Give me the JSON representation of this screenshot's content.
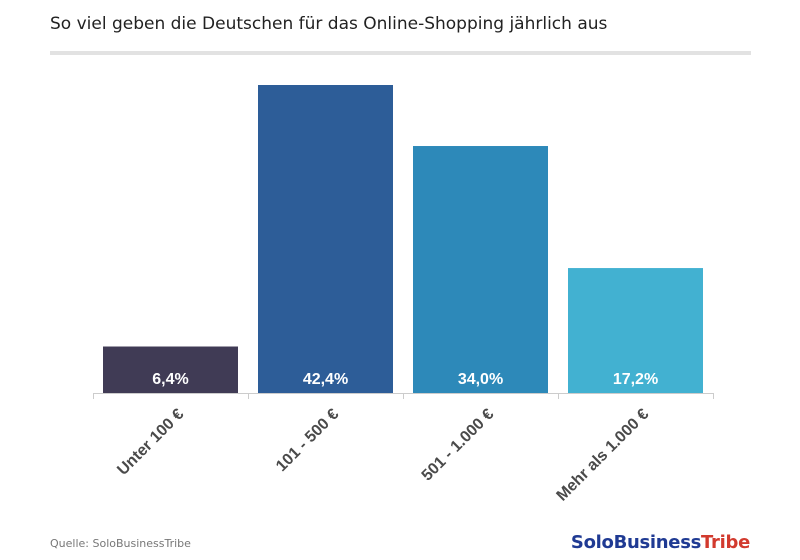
{
  "header": {
    "title": "So viel geben die Deutschen für das Online-Shopping jährlich aus"
  },
  "chart_data": {
    "type": "bar",
    "title": "So viel geben die Deutschen für das Online-Shopping jährlich aus",
    "categories": [
      "Unter 100 €",
      "101 - 500 €",
      "501 - 1.000 €",
      "Mehr als 1.000 €"
    ],
    "values": [
      6.4,
      42.4,
      34.0,
      17.2
    ],
    "value_labels": [
      "6,4%",
      "42,4%",
      "34,0%",
      "17,2%"
    ],
    "colors": [
      "#403b55",
      "#2d5d98",
      "#2d89b9",
      "#42b1d1"
    ],
    "ylim": [
      0,
      42.4
    ],
    "grid": false,
    "legend": "none"
  },
  "footer": {
    "source": "Quelle: SoloBusinessTribe",
    "brand_part1": "SoloBusiness",
    "brand_part2": "Tribe"
  },
  "colors": {
    "axis": "#cccccc",
    "brand_blue": "#1f3a93",
    "brand_red": "#d23a2e"
  }
}
